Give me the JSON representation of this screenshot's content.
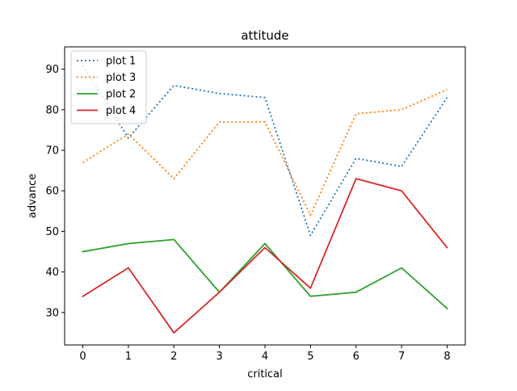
{
  "chart_data": {
    "type": "line",
    "title": "attitude",
    "xlabel": "critical",
    "ylabel": "advance",
    "x": [
      0,
      1,
      2,
      3,
      4,
      5,
      6,
      7,
      8
    ],
    "xlim": [
      -0.4,
      8.4
    ],
    "ylim": [
      22,
      95.5
    ],
    "xticks": [
      0,
      1,
      2,
      3,
      4,
      5,
      6,
      7,
      8
    ],
    "yticks": [
      30,
      40,
      50,
      60,
      70,
      80,
      90
    ],
    "grid": false,
    "legend_position": "upper-left",
    "series": [
      {
        "name": "plot 1",
        "color": "#1f77b4",
        "style": "dotted",
        "values": [
          91,
          73,
          86,
          84,
          83,
          49,
          68,
          66,
          83
        ]
      },
      {
        "name": "plot 3",
        "color": "#ff7f0e",
        "style": "dotted",
        "values": [
          67,
          74,
          63,
          77,
          77,
          54,
          79,
          80,
          85
        ]
      },
      {
        "name": "plot 2",
        "color": "#2ca02c",
        "style": "solid",
        "values": [
          45,
          47,
          48,
          35,
          47,
          34,
          35,
          41,
          31
        ]
      },
      {
        "name": "plot 4",
        "color": "#d62728",
        "style": "solid",
        "values": [
          34,
          41,
          25,
          35,
          46,
          36,
          63,
          60,
          46
        ]
      }
    ]
  }
}
